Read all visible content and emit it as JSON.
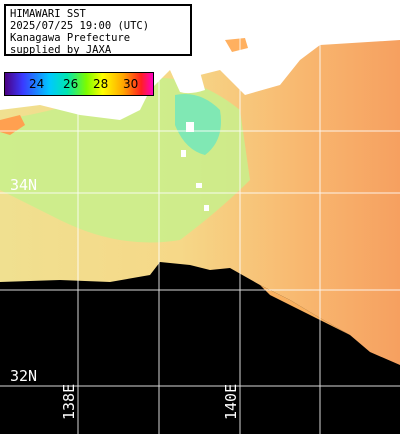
{
  "info": {
    "line1": "HIMAWARI SST",
    "line2": "2025/07/25 19:00 (UTC)",
    "line3": "Kanagawa Prefecture",
    "line4": "supplied by JAXA"
  },
  "legend": {
    "labels": [
      "24",
      "26",
      "28",
      "30"
    ]
  },
  "grid_labels": {
    "lat_34": "34N",
    "lat_32": "32N",
    "lon_138": "138E",
    "lon_140": "140E"
  },
  "colors": {
    "land": "#ffffff",
    "no_data": "#000000",
    "warm_sea": "#ffa050",
    "mid_sea": "#f8d080",
    "cool_sea": "#c8f080",
    "cold_bay": "#80e8b0",
    "grid": "#ffffff"
  }
}
